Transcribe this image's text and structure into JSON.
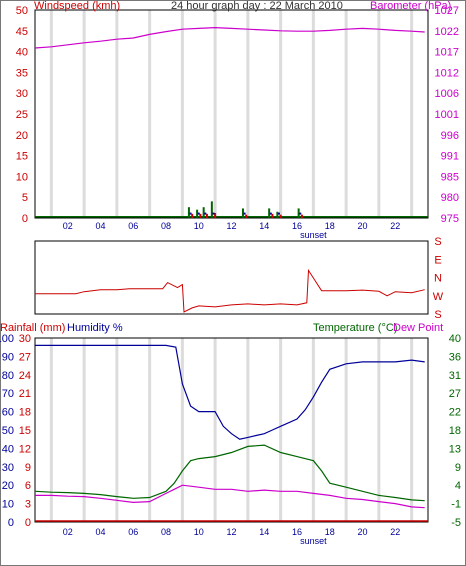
{
  "chart_data": [
    {
      "type": "line",
      "title": "24 hour graph day : 22 March 2010",
      "ylabel_left": "Windspeed (kmh)",
      "ylabel_right": "Barometer (hPa)",
      "x_ticks": [
        "02",
        "04",
        "06",
        "08",
        "10",
        "12",
        "14",
        "16",
        "18",
        "20",
        "22"
      ],
      "x_marker": "sunset",
      "xlim_hours": [
        0,
        24
      ],
      "y_left_ticks": [
        0,
        5,
        10,
        15,
        20,
        25,
        30,
        35,
        40,
        45,
        50
      ],
      "ylim_left": [
        0,
        50
      ],
      "y_right_ticks": [
        975,
        980,
        985,
        991,
        996,
        1001,
        1006,
        1012,
        1017,
        1022,
        1027
      ],
      "ylim_right": [
        975,
        1027
      ],
      "grid": "vertical",
      "colors": {
        "wind": "#cc0000",
        "gust": "#006600",
        "avg": "#000099",
        "barometer": "#cc00cc"
      },
      "series": [
        {
          "name": "Barometer (hPa)",
          "axis": "right",
          "x": [
            0,
            1,
            2,
            3,
            4,
            5,
            6,
            7,
            8,
            9,
            10,
            11,
            12,
            13,
            14,
            15,
            16,
            17,
            18,
            19,
            20,
            21,
            22,
            23,
            23.8
          ],
          "y": [
            1017.5,
            1017.8,
            1018.3,
            1018.8,
            1019.2,
            1019.7,
            1020.0,
            1020.9,
            1021.6,
            1022.2,
            1022.4,
            1022.6,
            1022.4,
            1022.2,
            1022.0,
            1021.8,
            1021.7,
            1021.7,
            1021.9,
            1022.2,
            1022.4,
            1022.2,
            1021.9,
            1021.7,
            1021.5
          ]
        },
        {
          "name": "Gust",
          "axis": "left",
          "x": [
            9.4,
            9.9,
            10.3,
            10.8,
            12.7,
            14.3,
            14.8,
            16.1
          ],
          "y": [
            2.6,
            2.0,
            2.6,
            4.0,
            2.3,
            2.3,
            1.5,
            2.3
          ]
        },
        {
          "name": "Wind",
          "axis": "left",
          "x": [
            9.6,
            10.1,
            10.5,
            11.0,
            12.9,
            14.5,
            15.0,
            16.3
          ],
          "y": [
            1.0,
            1.0,
            1.0,
            1.2,
            0.8,
            1.0,
            0.8,
            0.8
          ]
        }
      ]
    },
    {
      "type": "line",
      "ylabel_right": [
        "S",
        "E",
        "N",
        "W",
        "S"
      ],
      "xlim_hours": [
        0,
        24
      ],
      "ylim": [
        0,
        360
      ],
      "colors": {
        "direction": "#cc0000"
      },
      "series": [
        {
          "name": "Wind direction",
          "x": [
            0,
            2.5,
            3,
            4,
            5,
            5.8,
            7.8,
            8.1,
            8.7,
            9.0,
            9.1,
            9.6,
            10,
            11,
            12,
            13,
            14,
            15,
            16,
            16.6,
            16.7,
            17.1,
            17.5,
            18,
            19,
            20,
            21,
            21.5,
            22,
            23,
            23.8
          ],
          "y": [
            100,
            100,
            110,
            120,
            120,
            125,
            125,
            155,
            130,
            145,
            10,
            30,
            40,
            35,
            45,
            50,
            45,
            50,
            45,
            55,
            215,
            165,
            115,
            115,
            115,
            118,
            112,
            90,
            110,
            105,
            120
          ]
        }
      ]
    },
    {
      "type": "line",
      "ylabel_left_1": "Rainfall (mm)",
      "ylabel_left_2": "Humidity %",
      "ylabel_right_1": "Temperature (°C)",
      "ylabel_right_2": "Dew Point",
      "x_ticks": [
        "02",
        "04",
        "06",
        "08",
        "10",
        "12",
        "14",
        "16",
        "18",
        "20",
        "22"
      ],
      "x_marker": "sunset",
      "xlim_hours": [
        0,
        24
      ],
      "y_rain_ticks": [
        0,
        3,
        6,
        9,
        12,
        15,
        18,
        21,
        24,
        27,
        30
      ],
      "ylim_rain": [
        0,
        30
      ],
      "y_hum_ticks": [
        0,
        10,
        20,
        30,
        40,
        50,
        60,
        70,
        80,
        90,
        100
      ],
      "ylim_hum": [
        0,
        100
      ],
      "y_temp_ticks": [
        -5,
        -1,
        4,
        9,
        13,
        18,
        22,
        27,
        31,
        36,
        40
      ],
      "ylim_temp": [
        -5,
        40
      ],
      "colors": {
        "humidity": "#000099",
        "temperature": "#006600",
        "dewpoint": "#cc00cc",
        "rainfall": "#cc0000"
      },
      "series": [
        {
          "name": "Humidity",
          "axis": "hum",
          "x": [
            0,
            1,
            2,
            3,
            4,
            5,
            6,
            7,
            8,
            8.6,
            9,
            9.5,
            10,
            11,
            11.5,
            12,
            12.5,
            13,
            13.5,
            14,
            14.5,
            15,
            16,
            16.5,
            17,
            17.5,
            18,
            19,
            20,
            21,
            22,
            23,
            23.8
          ],
          "y": [
            96,
            96,
            96,
            96,
            96,
            96,
            96,
            96,
            96,
            95,
            75,
            63,
            60,
            60,
            52,
            48,
            45,
            46,
            47,
            48,
            50,
            52,
            56,
            61,
            68,
            76,
            83,
            86,
            87,
            87,
            87,
            88,
            87
          ]
        },
        {
          "name": "Temperature",
          "axis": "temp",
          "x": [
            0,
            1,
            2,
            3,
            4,
            5,
            6,
            7,
            8,
            8.5,
            9,
            9.5,
            10,
            11,
            12,
            13,
            14,
            15,
            16,
            17,
            17.5,
            18,
            19,
            20,
            21,
            22,
            23,
            23.8
          ],
          "y": [
            2.5,
            2.3,
            2.2,
            2.0,
            1.7,
            1.2,
            0.8,
            1.0,
            2.5,
            4.5,
            7.5,
            10,
            10.5,
            11,
            12,
            13.5,
            13.8,
            12,
            11,
            10,
            7.5,
            4.5,
            3.5,
            2.5,
            1.5,
            1.0,
            0.4,
            0.2
          ]
        },
        {
          "name": "Dew Point",
          "axis": "temp",
          "x": [
            0,
            1,
            2,
            3,
            4,
            5,
            6,
            7,
            8,
            8.5,
            9,
            10,
            11,
            12,
            13,
            14,
            15,
            16,
            17,
            18,
            19,
            20,
            21,
            22,
            23,
            23.8
          ],
          "y": [
            1.5,
            1.5,
            1.3,
            1.2,
            0.8,
            0.3,
            -0.2,
            0,
            2.0,
            3.0,
            4.0,
            3.5,
            3.0,
            3.0,
            2.5,
            2.8,
            2.5,
            2.5,
            2.0,
            1.5,
            0.8,
            0.5,
            0.0,
            -0.5,
            -1.3,
            -1.5
          ]
        },
        {
          "name": "Rainfall",
          "axis": "rain",
          "x": [
            0,
            24
          ],
          "y": [
            0,
            0
          ]
        }
      ]
    }
  ]
}
